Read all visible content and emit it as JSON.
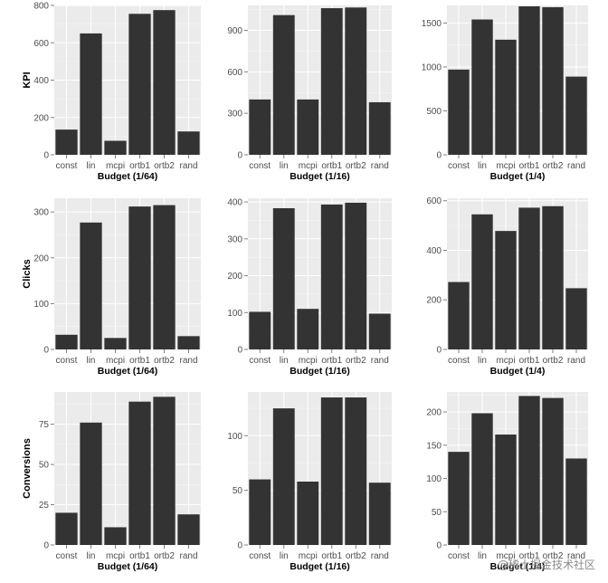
{
  "chart_data": [
    {
      "type": "bar",
      "row": 0,
      "col": 0,
      "ylabel": "KPI",
      "xlabel": "Budget (1/64)",
      "categories": [
        "const",
        "lin",
        "mcpi",
        "ortb1",
        "ortb2",
        "rand"
      ],
      "values": [
        135,
        650,
        75,
        755,
        775,
        125
      ],
      "ylim": [
        0,
        800
      ],
      "yticks": [
        0,
        200,
        400,
        600,
        800
      ],
      "grid": true
    },
    {
      "type": "bar",
      "row": 0,
      "col": 1,
      "ylabel": "",
      "xlabel": "Budget (1/16)",
      "categories": [
        "const",
        "lin",
        "mcpi",
        "ortb1",
        "ortb2",
        "rand"
      ],
      "values": [
        400,
        1010,
        400,
        1060,
        1065,
        380
      ],
      "ylim": [
        0,
        1080
      ],
      "yticks": [
        0,
        300,
        600,
        900
      ],
      "grid": true
    },
    {
      "type": "bar",
      "row": 0,
      "col": 2,
      "ylabel": "",
      "xlabel": "Budget (1/4)",
      "categories": [
        "const",
        "lin",
        "mcpi",
        "ortb1",
        "ortb2",
        "rand"
      ],
      "values": [
        970,
        1540,
        1310,
        1690,
        1680,
        890
      ],
      "ylim": [
        0,
        1700
      ],
      "yticks": [
        0,
        500,
        1000,
        1500
      ],
      "grid": true
    },
    {
      "type": "bar",
      "row": 1,
      "col": 0,
      "ylabel": "Clicks",
      "xlabel": "Budget (1/64)",
      "categories": [
        "const",
        "lin",
        "mcpi",
        "ortb1",
        "ortb2",
        "rand"
      ],
      "values": [
        32,
        277,
        25,
        312,
        315,
        29
      ],
      "ylim": [
        0,
        330
      ],
      "yticks": [
        0,
        100,
        200,
        300
      ],
      "grid": true
    },
    {
      "type": "bar",
      "row": 1,
      "col": 1,
      "ylabel": "",
      "xlabel": "Budget (1/16)",
      "categories": [
        "const",
        "lin",
        "mcpi",
        "ortb1",
        "ortb2",
        "rand"
      ],
      "values": [
        102,
        383,
        110,
        393,
        398,
        97
      ],
      "ylim": [
        0,
        410
      ],
      "yticks": [
        0,
        100,
        200,
        300,
        400
      ],
      "grid": true
    },
    {
      "type": "bar",
      "row": 1,
      "col": 2,
      "ylabel": "",
      "xlabel": "Budget (1/4)",
      "categories": [
        "const",
        "lin",
        "mcpi",
        "ortb1",
        "ortb2",
        "rand"
      ],
      "values": [
        272,
        545,
        478,
        572,
        578,
        247
      ],
      "ylim": [
        0,
        610
      ],
      "yticks": [
        0,
        200,
        400,
        600
      ],
      "grid": true
    },
    {
      "type": "bar",
      "row": 2,
      "col": 0,
      "ylabel": "Conversions",
      "xlabel": "Budget (1/64)",
      "categories": [
        "const",
        "lin",
        "mcpi",
        "ortb1",
        "ortb2",
        "rand"
      ],
      "values": [
        20,
        76,
        11,
        89,
        92,
        19
      ],
      "ylim": [
        0,
        95
      ],
      "yticks": [
        0,
        25,
        50,
        75
      ],
      "grid": true
    },
    {
      "type": "bar",
      "row": 2,
      "col": 1,
      "ylabel": "",
      "xlabel": "Budget (1/16)",
      "categories": [
        "const",
        "lin",
        "mcpi",
        "ortb1",
        "ortb2",
        "rand"
      ],
      "values": [
        60,
        125,
        58,
        135,
        135,
        57
      ],
      "ylim": [
        0,
        140
      ],
      "yticks": [
        0,
        50,
        100
      ],
      "grid": true
    },
    {
      "type": "bar",
      "row": 2,
      "col": 2,
      "ylabel": "",
      "xlabel": "Budget (1/4)",
      "categories": [
        "const",
        "lin",
        "mcpi",
        "ortb1",
        "ortb2",
        "rand"
      ],
      "values": [
        140,
        198,
        166,
        224,
        221,
        130
      ],
      "ylim": [
        0,
        230
      ],
      "yticks": [
        0,
        50,
        100,
        150,
        200
      ],
      "grid": true
    }
  ],
  "watermark": "@稀土掘金技术社区",
  "colors": {
    "bar": "#333333",
    "panel": "#ebebeb",
    "grid": "#ffffff"
  }
}
